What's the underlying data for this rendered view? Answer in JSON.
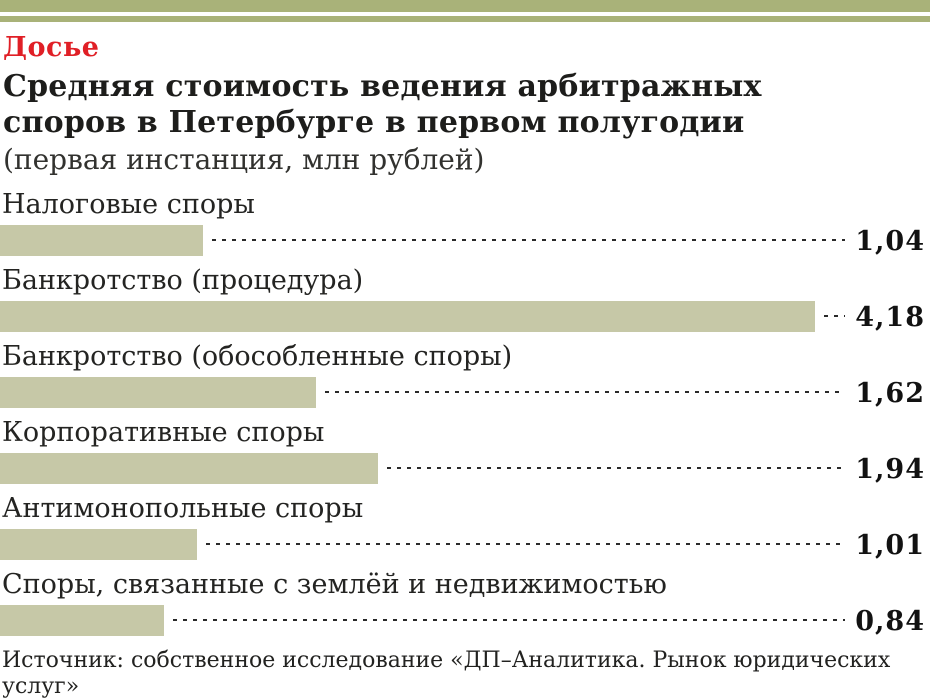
{
  "page": {
    "kicker": "Досье",
    "title_line1": "Средняя стоимость ведения арбитражных",
    "title_line2": "споров в Петербурге в первом полугодии",
    "subtitle": "(первая инстанция, млн рублей)",
    "source": "Источник: собственное исследование «ДП–Аналитика. Рынок юридических услуг»",
    "colors": {
      "accent_red": "#e01f26",
      "olive_rule": "#a9b279",
      "bar_fill": "#c6c8a7",
      "text_dark": "#1d1d1b"
    }
  },
  "chart_data": {
    "type": "bar",
    "orientation": "horizontal",
    "title": "Средняя стоимость ведения арбитражных споров в Петербурге в первом полугодии",
    "subtitle": "(первая инстанция, млн рублей)",
    "unit": "млн рублей",
    "categories": [
      "Налоговые споры",
      "Банкротство (процедура)",
      "Банкротство (обособленные споры)",
      "Корпоративные споры",
      "Антимонопольные споры",
      "Споры, связанные с землёй и недвижимостью"
    ],
    "values": [
      1.04,
      4.18,
      1.62,
      1.94,
      1.01,
      0.84
    ],
    "value_labels": [
      "1,04",
      "4,18",
      "1,62",
      "1,94",
      "1,01",
      "0,84"
    ],
    "xlim": [
      0,
      4.3
    ],
    "grid": false,
    "legend": false,
    "source": "Источник: собственное исследование «ДП–Аналитика. Рынок юридических услуг»"
  }
}
